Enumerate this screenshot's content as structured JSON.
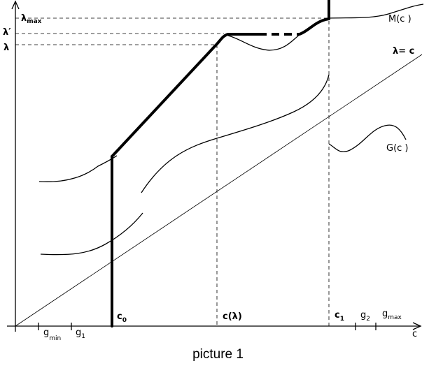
{
  "figure": {
    "caption": "picture 1",
    "x_axis_label": "c",
    "y_levels": {
      "lambda_max": "λ",
      "lambda_max_sub": "max",
      "lambda_prime": "λ′",
      "lambda": "λ"
    },
    "x_ticks": {
      "g_min": "g",
      "g_min_sub": "min",
      "g_1": "g",
      "g_1_sub": "1",
      "c_0": "c",
      "c_0_sub": "0",
      "c_lambda": "c(λ)",
      "c_1": "c",
      "c_1_sub": "1",
      "g_2": "g",
      "g_2_sub": "2",
      "g_max": "g",
      "g_max_sub": "max"
    },
    "curve_labels": {
      "M": "M(c )",
      "G": "G(c )",
      "diagonal": "λ= c"
    }
  }
}
